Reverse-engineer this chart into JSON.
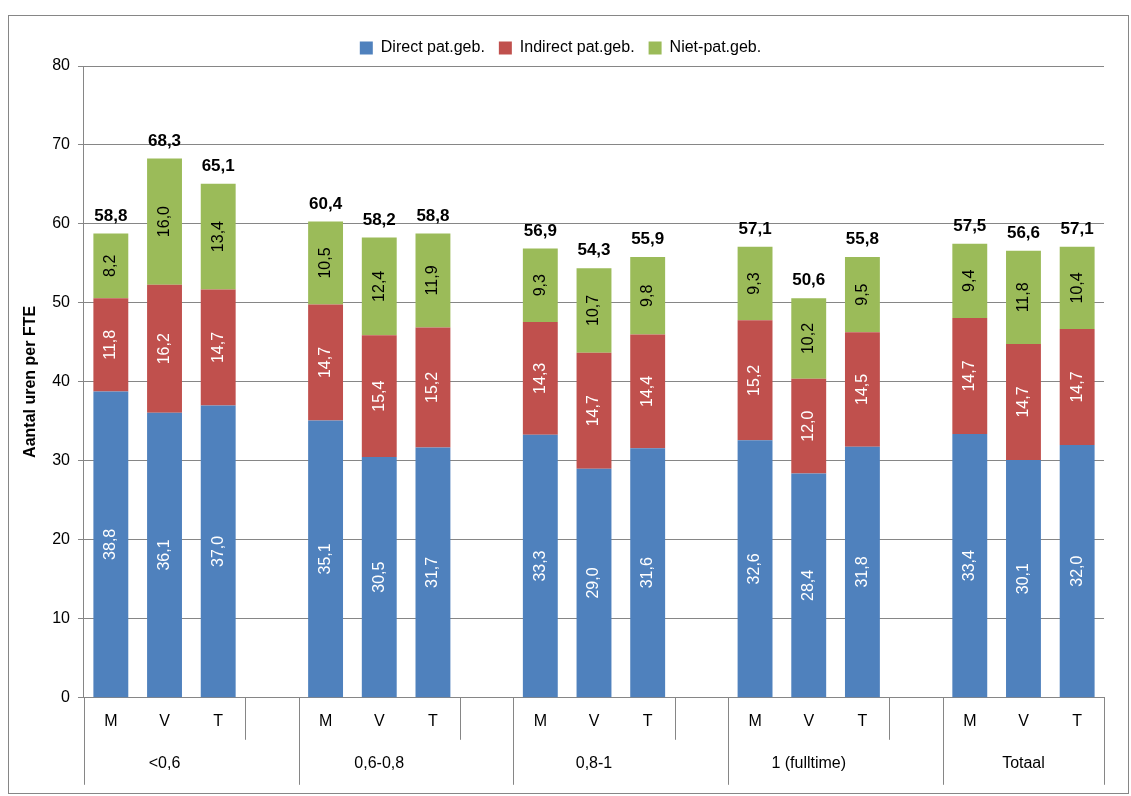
{
  "chart_data": {
    "type": "bar",
    "stacked": true,
    "ylabel": "Aantal uren per FTE",
    "categories": [
      "M",
      "V",
      "T",
      null,
      "M",
      "V",
      "T",
      null,
      "M",
      "V",
      "T",
      null,
      "M",
      "V",
      "T",
      null,
      "M",
      "V",
      "T"
    ],
    "series": [
      {
        "name": "Direct pat.geb.",
        "color": "#4f81bd",
        "values": [
          38.8,
          36.1,
          37.0,
          null,
          35.1,
          30.5,
          31.7,
          null,
          33.3,
          29.0,
          31.6,
          null,
          32.6,
          28.4,
          31.8,
          null,
          33.4,
          30.1,
          32.0
        ],
        "value_labels": [
          "38,8",
          "36,1",
          "37,0",
          null,
          "35,1",
          "30,5",
          "31,7",
          null,
          "33,3",
          "29,0",
          "31,6",
          null,
          "32,6",
          "28,4",
          "31,8",
          null,
          "33,4",
          "30,1",
          "32,0"
        ]
      },
      {
        "name": "Indirect pat.geb.",
        "color": "#c0504d",
        "values": [
          11.8,
          16.2,
          14.7,
          null,
          14.7,
          15.4,
          15.2,
          null,
          14.3,
          14.7,
          14.4,
          null,
          15.2,
          12.0,
          14.5,
          null,
          14.7,
          14.7,
          14.7
        ],
        "value_labels": [
          "11,8",
          "16,2",
          "14,7",
          null,
          "14,7",
          "15,4",
          "15,2",
          null,
          "14,3",
          "14,7",
          "14,4",
          null,
          "15,2",
          "12,0",
          "14,5",
          null,
          "14,7",
          "14,7",
          "14,7"
        ]
      },
      {
        "name": "Niet-pat.geb.",
        "color": "#9bbb59",
        "values": [
          8.2,
          16.0,
          13.4,
          null,
          10.5,
          12.4,
          11.9,
          null,
          9.3,
          10.7,
          9.8,
          null,
          9.3,
          10.2,
          9.5,
          null,
          9.4,
          11.8,
          10.4
        ],
        "value_labels": [
          "8,2",
          "16,0",
          "13,4",
          null,
          "10,5",
          "12,4",
          "11,9",
          null,
          "9,3",
          "10,7",
          "9,8",
          null,
          "9,3",
          "10,2",
          "9,5",
          null,
          "9,4",
          "11,8",
          "10,4"
        ]
      }
    ],
    "totals": [
      "58,8",
      "68,3",
      "65,1",
      null,
      "60,4",
      "58,2",
      "58,8",
      null,
      "56,9",
      "54,3",
      "55,9",
      null,
      "57,1",
      "50,6",
      "55,8",
      null,
      "57,5",
      "56,6",
      "57,1"
    ],
    "annotations": [
      "<0,6",
      "0,6-0,8",
      "0,8-1",
      "1 (fulltime)",
      "Totaal"
    ],
    "ylim": [
      0,
      80
    ],
    "yticks": [
      0,
      10,
      20,
      30,
      40,
      50,
      60,
      70,
      80
    ],
    "grid": "y",
    "legend": "top"
  }
}
